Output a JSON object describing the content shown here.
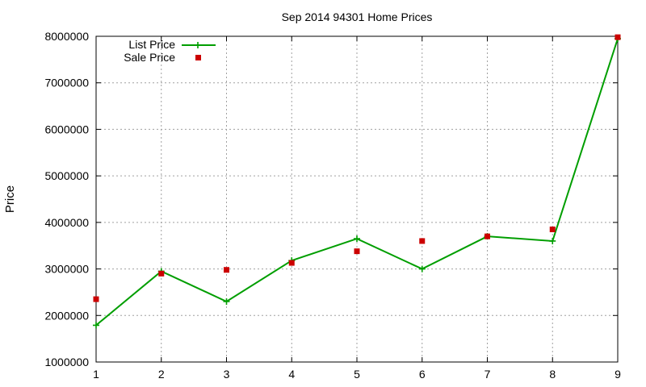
{
  "chart_data": {
    "type": "line",
    "title": "Sep 2014 94301 Home Prices",
    "xlabel": "",
    "ylabel": "Price",
    "x": [
      1,
      2,
      3,
      4,
      5,
      6,
      7,
      8,
      9
    ],
    "xlim": [
      1,
      9
    ],
    "ylim": [
      1000000,
      8000000
    ],
    "x_ticks": [
      "1",
      "2",
      "3",
      "4",
      "5",
      "6",
      "7",
      "8",
      "9"
    ],
    "y_ticks": [
      "1000000",
      "2000000",
      "3000000",
      "4000000",
      "5000000",
      "6000000",
      "7000000",
      "8000000"
    ],
    "grid": true,
    "legend_position": "top-left",
    "series": [
      {
        "name": "List Price",
        "style": "line+cross",
        "color": "#009e00",
        "values": [
          1790000,
          2950000,
          2300000,
          3180000,
          3650000,
          3000000,
          3700000,
          3600000,
          7950000
        ]
      },
      {
        "name": "Sale Price",
        "style": "square-points",
        "color": "#cc0000",
        "values": [
          2350000,
          2900000,
          2980000,
          3130000,
          3380000,
          3600000,
          3700000,
          3850000,
          7980000
        ]
      }
    ]
  }
}
